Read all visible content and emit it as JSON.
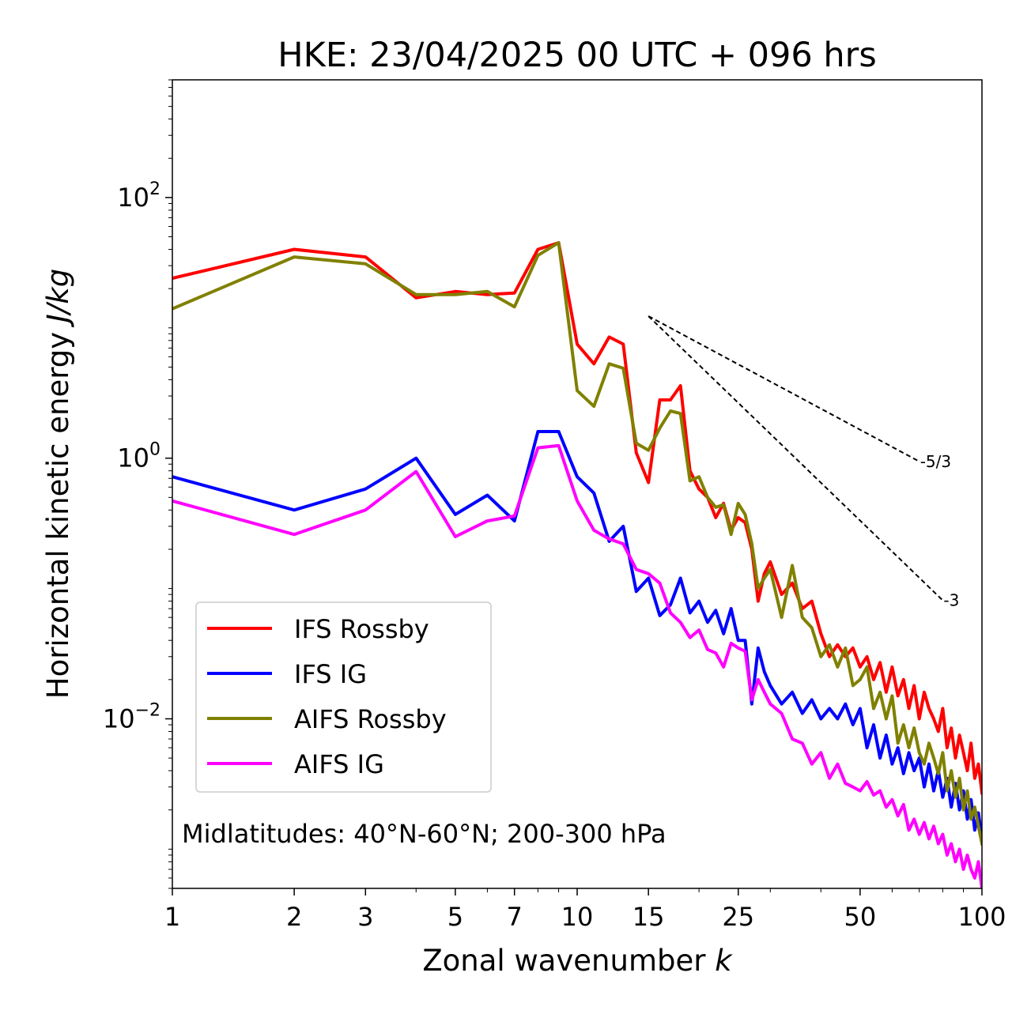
{
  "chart_data": {
    "type": "line",
    "title": "HKE: 23/04/2025 00 UTC + 096 hrs",
    "xlabel": "Zonal wavenumber",
    "xlabel_var": "k",
    "ylabel": "Horizontal kinetic energy",
    "ylabel_unit": "J/kg",
    "xscale": "log",
    "yscale": "log",
    "xlim": [
      1,
      100
    ],
    "ylim": [
      0.0005,
      800
    ],
    "x_ticks": [
      1,
      2,
      3,
      5,
      7,
      10,
      15,
      25,
      50,
      100
    ],
    "x_tick_labels": [
      "1",
      "2",
      "3",
      "5",
      "7",
      "10",
      "15",
      "25",
      "50",
      "100"
    ],
    "y_ticks": [
      0.01,
      1,
      100
    ],
    "y_tick_labels": [
      {
        "base": "10",
        "exp": "−2"
      },
      {
        "base": "10",
        "exp": "0"
      },
      {
        "base": "10",
        "exp": "2"
      }
    ],
    "grid": false,
    "legend_position": "lower-left",
    "annotation": "Midlatitudes: 40°N-60°N; 200-300 hPa",
    "reference_lines": [
      {
        "label": "-5/3",
        "slope": -1.6667,
        "x_start": 15,
        "y_start": 12.3,
        "x_end": 70
      },
      {
        "label": "-3",
        "slope": -3,
        "x_start": 15,
        "y_start": 12.3,
        "x_end": 80
      }
    ],
    "series": [
      {
        "name": "IFS Rossby",
        "color": "#ff0000",
        "x": [
          1,
          2,
          3,
          4,
          5,
          6,
          7,
          8,
          9,
          10,
          11,
          12,
          13,
          14,
          15,
          16,
          17,
          18,
          19,
          20,
          21,
          22,
          23,
          24,
          25,
          26,
          27,
          28,
          29,
          30,
          32,
          34,
          36,
          38,
          40,
          42,
          44,
          46,
          48,
          50,
          52,
          54,
          56,
          58,
          60,
          62,
          64,
          66,
          68,
          70,
          72,
          74,
          76,
          78,
          80,
          82,
          84,
          86,
          88,
          90,
          92,
          94,
          96,
          98,
          100
        ],
        "y": [
          24,
          40,
          35,
          17,
          19,
          18,
          18.5,
          40,
          45,
          7.5,
          5.3,
          8.5,
          7.5,
          1.1,
          0.65,
          2.8,
          2.8,
          3.6,
          0.8,
          0.58,
          0.5,
          0.35,
          0.45,
          0.28,
          0.35,
          0.32,
          0.2,
          0.08,
          0.13,
          0.16,
          0.09,
          0.11,
          0.07,
          0.08,
          0.045,
          0.03,
          0.037,
          0.03,
          0.035,
          0.025,
          0.03,
          0.02,
          0.027,
          0.016,
          0.025,
          0.015,
          0.02,
          0.012,
          0.018,
          0.01,
          0.016,
          0.012,
          0.01,
          0.008,
          0.012,
          0.006,
          0.0085,
          0.005,
          0.0075,
          0.0055,
          0.004,
          0.0065,
          0.0035,
          0.0045,
          0.0027
        ]
      },
      {
        "name": "IFS IG",
        "color": "#0000ff",
        "x": [
          1,
          2,
          3,
          4,
          5,
          6,
          7,
          8,
          9,
          10,
          11,
          12,
          13,
          14,
          15,
          16,
          17,
          18,
          19,
          20,
          21,
          22,
          23,
          24,
          25,
          26,
          27,
          28,
          29,
          30,
          32,
          34,
          36,
          38,
          40,
          42,
          44,
          46,
          48,
          50,
          52,
          54,
          56,
          58,
          60,
          62,
          64,
          66,
          68,
          70,
          72,
          74,
          76,
          78,
          80,
          82,
          84,
          86,
          88,
          90,
          92,
          94,
          96,
          98,
          100
        ],
        "y": [
          0.72,
          0.4,
          0.58,
          1.0,
          0.37,
          0.52,
          0.33,
          1.6,
          1.6,
          0.72,
          0.54,
          0.23,
          0.3,
          0.095,
          0.12,
          0.062,
          0.075,
          0.12,
          0.065,
          0.08,
          0.055,
          0.068,
          0.045,
          0.07,
          0.04,
          0.04,
          0.013,
          0.035,
          0.023,
          0.018,
          0.013,
          0.016,
          0.011,
          0.014,
          0.01,
          0.012,
          0.01,
          0.013,
          0.009,
          0.012,
          0.006,
          0.009,
          0.005,
          0.0075,
          0.0045,
          0.006,
          0.0038,
          0.0055,
          0.004,
          0.005,
          0.003,
          0.0045,
          0.0028,
          0.004,
          0.0025,
          0.0035,
          0.0021,
          0.0032,
          0.002,
          0.0028,
          0.0017,
          0.0024,
          0.0014,
          0.0019,
          0.0012
        ]
      },
      {
        "name": "AIFS Rossby",
        "color": "#808000",
        "x": [
          1,
          2,
          3,
          4,
          5,
          6,
          7,
          8,
          9,
          10,
          11,
          12,
          13,
          14,
          15,
          16,
          17,
          18,
          19,
          20,
          21,
          22,
          23,
          24,
          25,
          26,
          27,
          28,
          29,
          30,
          32,
          34,
          36,
          38,
          40,
          42,
          44,
          46,
          48,
          50,
          52,
          54,
          56,
          58,
          60,
          62,
          64,
          66,
          68,
          70,
          72,
          74,
          76,
          78,
          80,
          82,
          84,
          86,
          88,
          90,
          92,
          94,
          96,
          98,
          100
        ],
        "y": [
          14,
          35,
          31,
          18,
          18,
          19,
          14.5,
          36,
          45,
          3.3,
          2.5,
          5.3,
          4.9,
          1.3,
          1.15,
          1.7,
          2.3,
          2.2,
          0.67,
          0.72,
          0.5,
          0.42,
          0.44,
          0.26,
          0.45,
          0.37,
          0.22,
          0.1,
          0.12,
          0.14,
          0.06,
          0.15,
          0.06,
          0.05,
          0.03,
          0.037,
          0.025,
          0.035,
          0.018,
          0.02,
          0.025,
          0.012,
          0.016,
          0.01,
          0.015,
          0.0065,
          0.009,
          0.006,
          0.0085,
          0.0055,
          0.0045,
          0.0065,
          0.005,
          0.0038,
          0.0055,
          0.0028,
          0.004,
          0.0025,
          0.0035,
          0.002,
          0.0028,
          0.0017,
          0.0021,
          0.0015,
          0.0011
        ]
      },
      {
        "name": "AIFS IG",
        "color": "#ff00ff",
        "x": [
          1,
          2,
          3,
          4,
          5,
          6,
          7,
          8,
          9,
          10,
          11,
          12,
          13,
          14,
          15,
          16,
          17,
          18,
          19,
          20,
          21,
          22,
          23,
          24,
          25,
          26,
          27,
          28,
          29,
          30,
          32,
          34,
          36,
          38,
          40,
          42,
          44,
          46,
          48,
          50,
          52,
          54,
          56,
          58,
          60,
          62,
          64,
          66,
          68,
          70,
          72,
          74,
          76,
          78,
          80,
          82,
          84,
          86,
          88,
          90,
          92,
          94,
          96,
          98,
          100
        ],
        "y": [
          0.47,
          0.26,
          0.4,
          0.79,
          0.25,
          0.33,
          0.36,
          1.2,
          1.25,
          0.47,
          0.28,
          0.24,
          0.22,
          0.14,
          0.13,
          0.11,
          0.065,
          0.055,
          0.042,
          0.048,
          0.034,
          0.032,
          0.025,
          0.038,
          0.035,
          0.033,
          0.014,
          0.02,
          0.016,
          0.013,
          0.011,
          0.007,
          0.0065,
          0.0045,
          0.0055,
          0.0035,
          0.0045,
          0.0032,
          0.003,
          0.0028,
          0.0033,
          0.0026,
          0.0028,
          0.0021,
          0.0024,
          0.0018,
          0.0022,
          0.0014,
          0.0017,
          0.0013,
          0.0016,
          0.0012,
          0.0015,
          0.0011,
          0.0013,
          0.0009,
          0.0011,
          0.0008,
          0.001,
          0.0007,
          0.0009,
          0.0007,
          0.0006,
          0.0008,
          0.0005
        ]
      }
    ]
  }
}
